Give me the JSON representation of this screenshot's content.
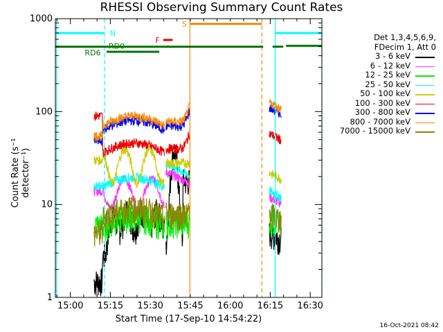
{
  "chart_data": {
    "type": "line",
    "title": "RHESSI Observing Summary Count Rates",
    "xlabel": "Start Time (17-Sep-10 14:54:22)",
    "ylabel": "Count Rate (s⁻¹ detector⁻¹)",
    "y_scale": "log",
    "ylim": [
      1,
      1000
    ],
    "xlim_minutes": [
      0,
      100
    ],
    "xticks": [
      {
        "label": "15:00",
        "t": 5.63
      },
      {
        "label": "15:15",
        "t": 20.63
      },
      {
        "label": "15:30",
        "t": 35.63
      },
      {
        "label": "15:45",
        "t": 50.63
      },
      {
        "label": "16:00",
        "t": 65.63
      },
      {
        "label": "16:15",
        "t": 80.63
      },
      {
        "label": "16:30",
        "t": 95.63
      }
    ],
    "yticks": [
      {
        "label": "1",
        "v": 1
      },
      {
        "label": "10",
        "v": 10
      },
      {
        "label": "100",
        "v": 100
      },
      {
        "label": "1000",
        "v": 1000
      }
    ],
    "legend_header": [
      "Det 1,3,4,5,6,9,",
      "FDecim 1, Att 0"
    ],
    "legend_position": "right",
    "series": [
      {
        "name": "3 - 6 keV",
        "color": "#000000",
        "base": 6,
        "pre_gap": 1.5,
        "post_gap": 5
      },
      {
        "name": "6 - 12 keV",
        "color": "#ff33ff",
        "base": 14,
        "pre_gap": 14,
        "post_gap": 12
      },
      {
        "name": "12 - 25 keV",
        "color": "#00ee00",
        "base": 6.5,
        "pre_gap": 6,
        "post_gap": 7
      },
      {
        "name": "25 - 50 keV",
        "color": "#00ffff",
        "base": 17,
        "pre_gap": 16,
        "post_gap": 14
      },
      {
        "name": "50 - 100 keV",
        "color": "#cccc00",
        "base": 28,
        "pre_gap": 30,
        "post_gap": 22
      },
      {
        "name": "100 - 300 keV",
        "color": "#ee0000",
        "base": 40,
        "pre_gap": 90,
        "post_gap": 58
      },
      {
        "name": "300 - 800 keV",
        "color": "#0000ee",
        "base": 70,
        "pre_gap": 48,
        "post_gap": 110
      },
      {
        "name": "800 - 7000 keV",
        "color": "#ff8800",
        "base": 78,
        "pre_gap": 55,
        "post_gap": 125
      },
      {
        "name": "7000 - 15000 keV",
        "color": "#888800",
        "base": 8,
        "pre_gap": 5,
        "post_gap": 8
      }
    ],
    "segments": [
      {
        "start": 14.5,
        "end": 41.0
      },
      {
        "start": 41.5,
        "end": 50.5
      },
      {
        "start": 80.3,
        "end": 84.8
      }
    ],
    "annotations": [
      {
        "text": "N",
        "color": "#00ffff"
      },
      {
        "text": "S",
        "color": "#ff8800"
      },
      {
        "text": "F",
        "color": "#ee0000"
      },
      {
        "text": "RD0",
        "color": "#007700"
      },
      {
        "text": "RD6",
        "color": "#007700"
      }
    ],
    "status_bars": {
      "night": {
        "color": "#00ffff",
        "value": 700,
        "intervals": [
          [
            0.4,
            18.4
          ],
          [
            82.5,
            100
          ]
        ]
      },
      "saa": {
        "color": "#ff8800",
        "value": 880,
        "intervals": [
          [
            50.5,
            77.5
          ]
        ]
      },
      "flare": {
        "color": "#ee0000",
        "value": 590,
        "intervals": [
          [
            40.5,
            44
          ]
        ]
      },
      "rd0": {
        "color": "#007700",
        "value": 500,
        "intervals": [
          [
            0,
            39
          ],
          [
            39,
            78
          ],
          [
            81.5,
            85.5
          ]
        ]
      },
      "rd6": {
        "color": "#007700",
        "value": 440,
        "intervals": [
          [
            19.2,
            39
          ]
        ]
      },
      "rd_right": {
        "color": "#007700",
        "value": 510,
        "intervals": [
          [
            86.5,
            100
          ]
        ]
      }
    },
    "vertical_markers": [
      {
        "t": 0.4,
        "color": "#00ffff",
        "style": "solid"
      },
      {
        "t": 18.4,
        "color": "#00ffff",
        "style": "dashed"
      },
      {
        "t": 50.5,
        "color": "#ff8800",
        "style": "solid"
      },
      {
        "t": 77.5,
        "color": "#ff8800",
        "style": "dashed"
      },
      {
        "t": 82.5,
        "color": "#00ffff",
        "style": "solid"
      },
      {
        "t": 100,
        "color": "#00ffff",
        "style": "dashed"
      }
    ]
  },
  "footer": {
    "stamp": "16-Oct-2021 08:42"
  }
}
